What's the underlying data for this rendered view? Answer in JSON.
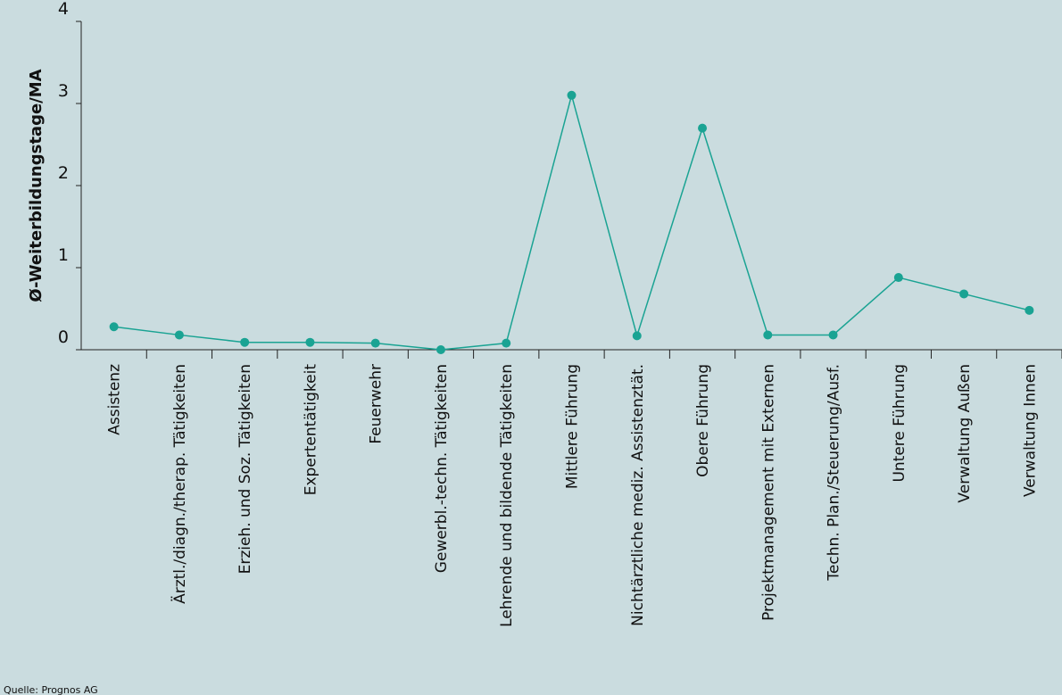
{
  "chart_data": {
    "type": "line",
    "y_label": "Ø-Weiterbildungstage/MA",
    "source": "Quelle: Prognos AG",
    "categories": [
      "Assistenz",
      "Ärztl./diagn./therap. Tätigkeiten",
      "Erzieh. und Soz. Tätigkeiten",
      "Expertentätigkeit",
      "Feuerwehr",
      "Gewerbl.-techn. Tätigkeiten",
      "Lehrende und bildende Tätigkeiten",
      "Mittlere Führung",
      "Nichtärztliche mediz. Assistenztät.",
      "Obere Führung",
      "Projektmanagement mit Externen",
      "Techn. Plan./Steuerung/Ausf.",
      "Untere Führung",
      "Verwaltung Außen",
      "Verwaltung Innen"
    ],
    "values": [
      0.28,
      0.18,
      0.09,
      0.09,
      0.08,
      0.0,
      0.08,
      3.1,
      0.17,
      2.7,
      0.18,
      0.18,
      0.88,
      0.68,
      0.48
    ],
    "color": "#1aa393",
    "ylim": [
      0,
      4
    ],
    "yticks": [
      0,
      1,
      2,
      3,
      4
    ]
  }
}
